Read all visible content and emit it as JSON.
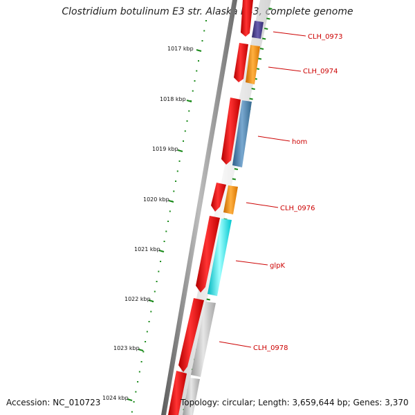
{
  "title": "Clostridium botulinum E3 str. Alaska E43, complete genome",
  "footer": {
    "accession": "Accession: NC_010723",
    "summary": "Topology: circular; Length: 3,659,644 bp; Genes: 3,370"
  },
  "scale": {
    "unit": "kbp",
    "ticks": [
      "1017 kbp",
      "1018 kbp",
      "1019 kbp",
      "1020 kbp",
      "1021 kbp",
      "1022 kbp",
      "1023 kbp",
      "1024 kbp"
    ]
  },
  "genes": [
    {
      "label": "CLH_0973",
      "color": "#4b3f8c"
    },
    {
      "label": "CLH_0974",
      "color": "#ff8c00"
    },
    {
      "label": "hom",
      "color": "#4682b4"
    },
    {
      "label": "CLH_0976",
      "color": "#ff8c00"
    },
    {
      "label": "glpK",
      "color": "#00e5ee"
    },
    {
      "label": "CLH_0978",
      "color": "#bebebe"
    }
  ],
  "colors": {
    "cds": "#ee0000",
    "backbone": "#808080",
    "tick": "#1a8a1a",
    "label": "#cc0000"
  }
}
